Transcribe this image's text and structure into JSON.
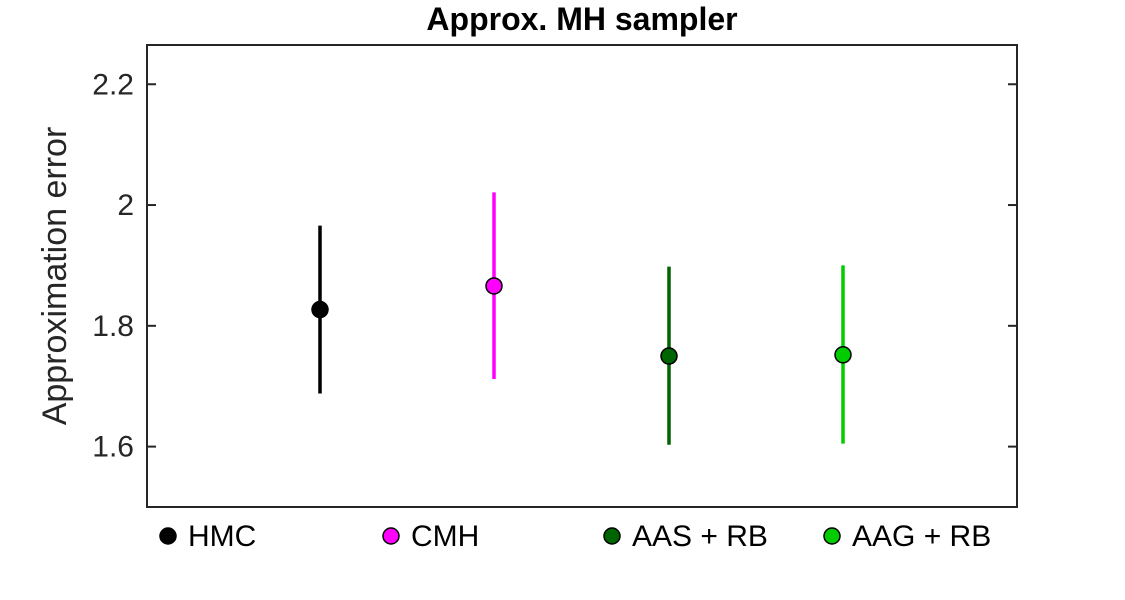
{
  "chart_data": {
    "type": "scatter",
    "title": "Approx. MH sampler",
    "xlabel": "",
    "ylabel": "Approximation error",
    "ylim": [
      1.5,
      2.265
    ],
    "yticks": [
      1.6,
      1.8,
      2,
      2.2
    ],
    "ytick_labels": [
      "1.6",
      "1.8",
      "2",
      "2.2"
    ],
    "grid": false,
    "legend_position": "bottom",
    "series": [
      {
        "name": "HMC",
        "x": 1,
        "value": 1.827,
        "low": 1.688,
        "high": 1.966,
        "color": "#000000"
      },
      {
        "name": "CMH",
        "x": 2,
        "value": 1.866,
        "low": 1.712,
        "high": 2.021,
        "color": "#ff00ff"
      },
      {
        "name": "AAS + RB",
        "x": 3,
        "value": 1.75,
        "low": 1.603,
        "high": 1.898,
        "color": "#006400"
      },
      {
        "name": "AAG + RB",
        "x": 4,
        "value": 1.752,
        "low": 1.605,
        "high": 1.9,
        "color": "#00cc00"
      }
    ]
  }
}
